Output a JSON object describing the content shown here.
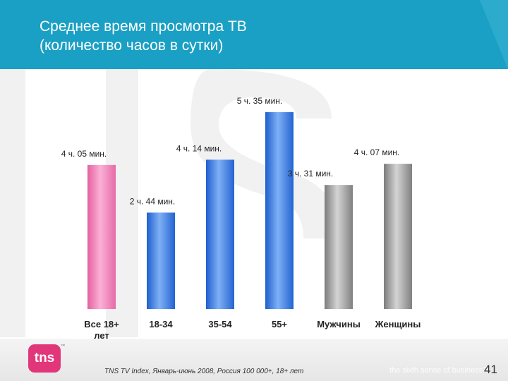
{
  "title": "Среднее время просмотра ТВ\n(количество часов в сутки)",
  "colors": {
    "header": "#1aa0c4",
    "pink": "#f58ec3",
    "blue": "#3b7ee0",
    "gray": "#9a9a9a",
    "logo": "#e2367a"
  },
  "chart_data": {
    "type": "bar",
    "title": "Среднее время просмотра ТВ (количество часов в сутки)",
    "categories": [
      "Все 18+ лет",
      "18-34",
      "35-54",
      "55+",
      "Мужчины",
      "Женщины"
    ],
    "category_labels": [
      [
        "Все 18+",
        "лет"
      ],
      [
        "18-34"
      ],
      [
        "35-54"
      ],
      [
        "55+"
      ],
      [
        "Мужчины"
      ],
      [
        "Женщины"
      ]
    ],
    "values": [
      4.083,
      2.733,
      4.233,
      5.583,
      3.517,
      4.117
    ],
    "value_labels": [
      "4 ч. 05 мин.",
      "2 ч. 44 мин.",
      "4 ч. 14 мин.",
      "5 ч. 35 мин.",
      "3 ч. 31 мин.",
      "4 ч. 07 мин."
    ],
    "bar_colors": [
      "pink",
      "blue",
      "blue",
      "blue",
      "gray",
      "gray"
    ],
    "ylim": [
      0,
      6
    ],
    "grid": false,
    "legend": "none"
  },
  "footer": {
    "logo": "tns",
    "logo_tm": "™",
    "source": "TNS TV Index, Январь-июнь 2008, Россия 100 000+, 18+ лет",
    "tagline": "the sixth sense of business™",
    "page_number": "41"
  }
}
